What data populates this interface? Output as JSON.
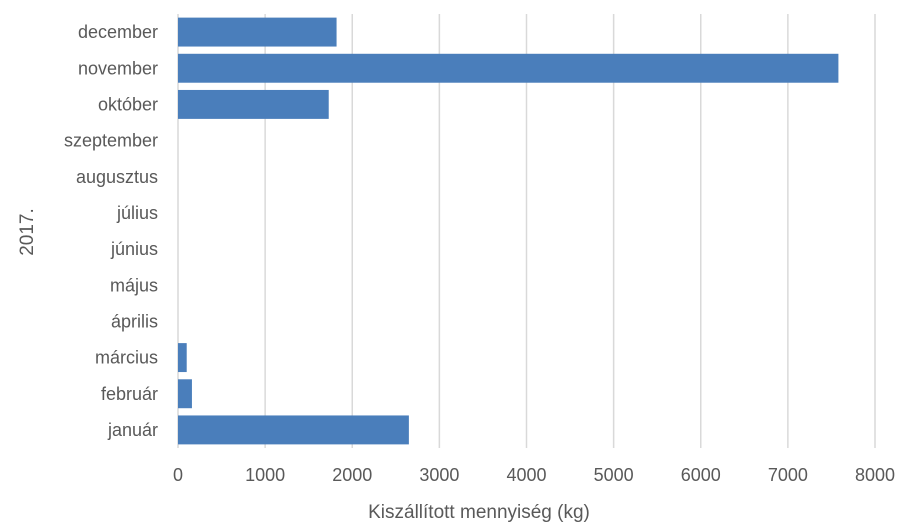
{
  "chart_data": {
    "type": "bar",
    "orientation": "horizontal",
    "group_label": "2017.",
    "categories": [
      "január",
      "február",
      "március",
      "április",
      "május",
      "június",
      "július",
      "augusztus",
      "szeptember",
      "október",
      "november",
      "december"
    ],
    "values": [
      2650,
      160,
      100,
      0,
      0,
      0,
      0,
      0,
      0,
      1730,
      7580,
      1820
    ],
    "xlabel": "Kiszállított mennyiség (kg)",
    "xlim": [
      0,
      8000
    ],
    "xticks": [
      "0",
      "1000",
      "2000",
      "3000",
      "4000",
      "5000",
      "6000",
      "7000",
      "8000"
    ],
    "grid": true,
    "bar_color": "#4a7ebb"
  }
}
